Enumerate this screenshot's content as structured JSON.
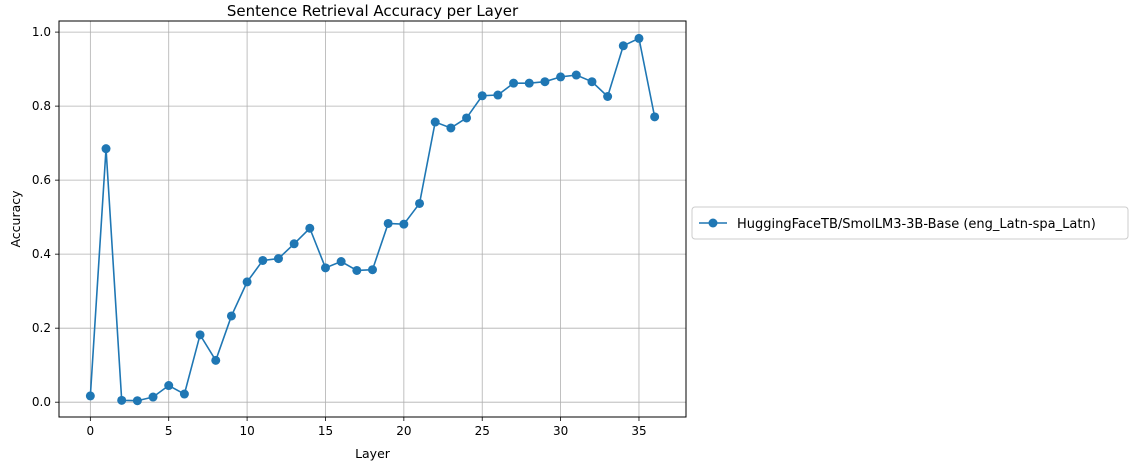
{
  "chart_data": {
    "type": "line",
    "title": "Sentence Retrieval Accuracy per Layer",
    "xlabel": "Layer",
    "ylabel": "Accuracy",
    "xlim": [
      -2,
      38
    ],
    "ylim": [
      -0.04,
      1.03
    ],
    "xticks": [
      0,
      5,
      10,
      15,
      20,
      25,
      30,
      35
    ],
    "yticks": [
      0.0,
      0.2,
      0.4,
      0.6,
      0.8,
      1.0
    ],
    "xtick_labels": [
      "0",
      "5",
      "10",
      "15",
      "20",
      "25",
      "30",
      "35"
    ],
    "ytick_labels": [
      "0.0",
      "0.2",
      "0.4",
      "0.6",
      "0.8",
      "1.0"
    ],
    "grid": true,
    "legend_position": "outside-right",
    "series": [
      {
        "name": "HuggingFaceTB/SmolLM3-3B-Base (eng_Latn-spa_Latn)",
        "color": "#1f77b4",
        "marker": "circle",
        "x": [
          0,
          1,
          2,
          3,
          4,
          5,
          6,
          7,
          8,
          9,
          10,
          11,
          12,
          13,
          14,
          15,
          16,
          17,
          18,
          19,
          20,
          21,
          22,
          23,
          24,
          25,
          26,
          27,
          28,
          29,
          30,
          31,
          32,
          33,
          34,
          35,
          36
        ],
        "y": [
          0.017,
          0.685,
          0.005,
          0.004,
          0.014,
          0.045,
          0.022,
          0.182,
          0.113,
          0.233,
          0.325,
          0.383,
          0.388,
          0.428,
          0.47,
          0.363,
          0.38,
          0.356,
          0.358,
          0.483,
          0.481,
          0.537,
          0.757,
          0.741,
          0.768,
          0.828,
          0.83,
          0.862,
          0.862,
          0.866,
          0.879,
          0.884,
          0.866,
          0.826,
          0.963,
          0.983,
          0.771
        ]
      }
    ]
  }
}
